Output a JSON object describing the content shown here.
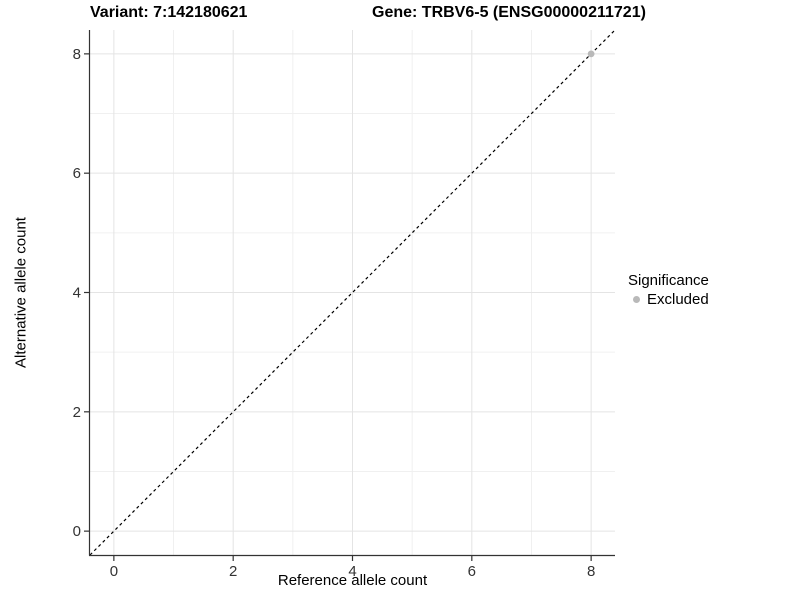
{
  "title": {
    "left": "Variant: 7:142180621",
    "right": "Gene: TRBV6-5 (ENSG00000211721)"
  },
  "legend": {
    "title": "Significance",
    "entries": [
      {
        "label": "Excluded",
        "color": "#b9b9b9"
      }
    ]
  },
  "colors": {
    "background": "#ffffff",
    "major_grid": "#e4e4e4",
    "minor_grid": "#f0f0f0",
    "axis_line": "#333333",
    "tick_mark": "#333333",
    "tick_label": "#333333",
    "reference_line": "#000000"
  },
  "chart_data": {
    "type": "scatter",
    "title": "Variant: 7:142180621   Gene: TRBV6-5 (ENSG00000211721)",
    "xlabel": "Reference allele count",
    "ylabel": "Alternative allele count",
    "xlim": [
      -0.4,
      8.4
    ],
    "ylim": [
      -0.4,
      8.4
    ],
    "xticks": [
      0,
      2,
      4,
      6,
      8
    ],
    "yticks": [
      0,
      2,
      4,
      6,
      8
    ],
    "minor_ticks": [
      1,
      3,
      5,
      7
    ],
    "grid": true,
    "legend_position": "right",
    "reference_line": {
      "type": "identity",
      "style": "dashed",
      "color": "#000000"
    },
    "series": [
      {
        "name": "Excluded",
        "color": "#b9b9b9",
        "marker_radius": 3.4,
        "points": [
          {
            "x": 8,
            "y": 8
          }
        ]
      }
    ]
  }
}
